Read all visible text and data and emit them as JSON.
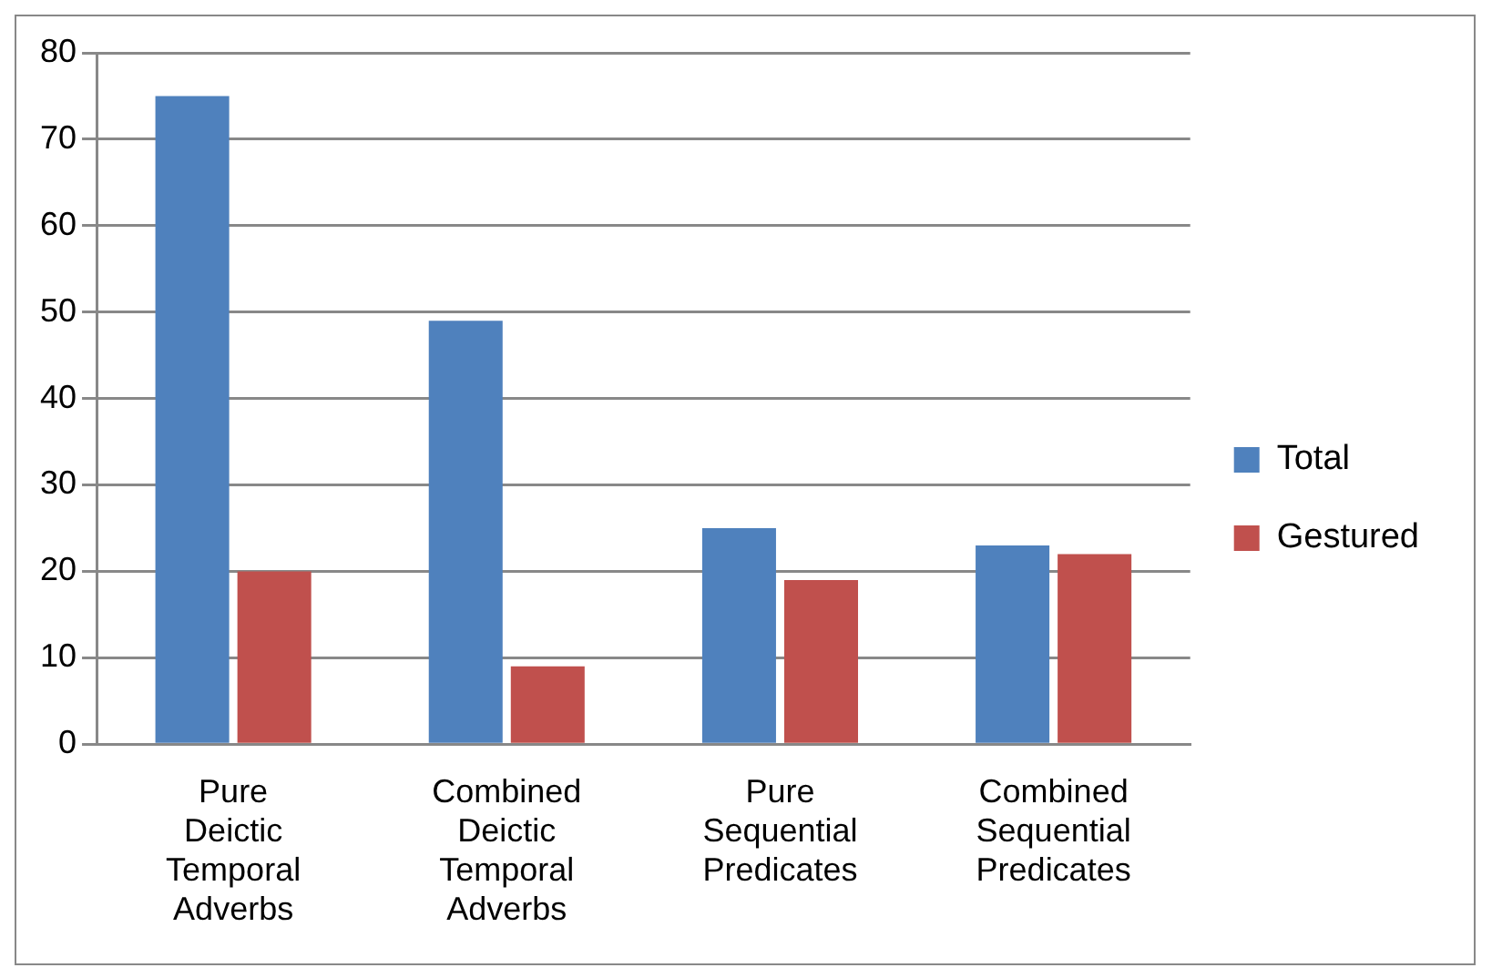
{
  "chart_data": {
    "type": "bar",
    "categories": [
      "Pure Deictic Temporal Adverbs",
      "Combined Deictic Temporal Adverbs",
      "Pure Sequential Predicates",
      "Combined Sequential Predicates"
    ],
    "series": [
      {
        "name": "Total",
        "color": "#4f81bd",
        "values": [
          75,
          49,
          25,
          23
        ]
      },
      {
        "name": "Gestured",
        "color": "#c0504d",
        "values": [
          20,
          9,
          19,
          22
        ]
      }
    ],
    "ylim": [
      0,
      80
    ],
    "yticks": [
      0,
      10,
      20,
      30,
      40,
      50,
      60,
      70,
      80
    ],
    "grid": "y",
    "legend": "right"
  }
}
